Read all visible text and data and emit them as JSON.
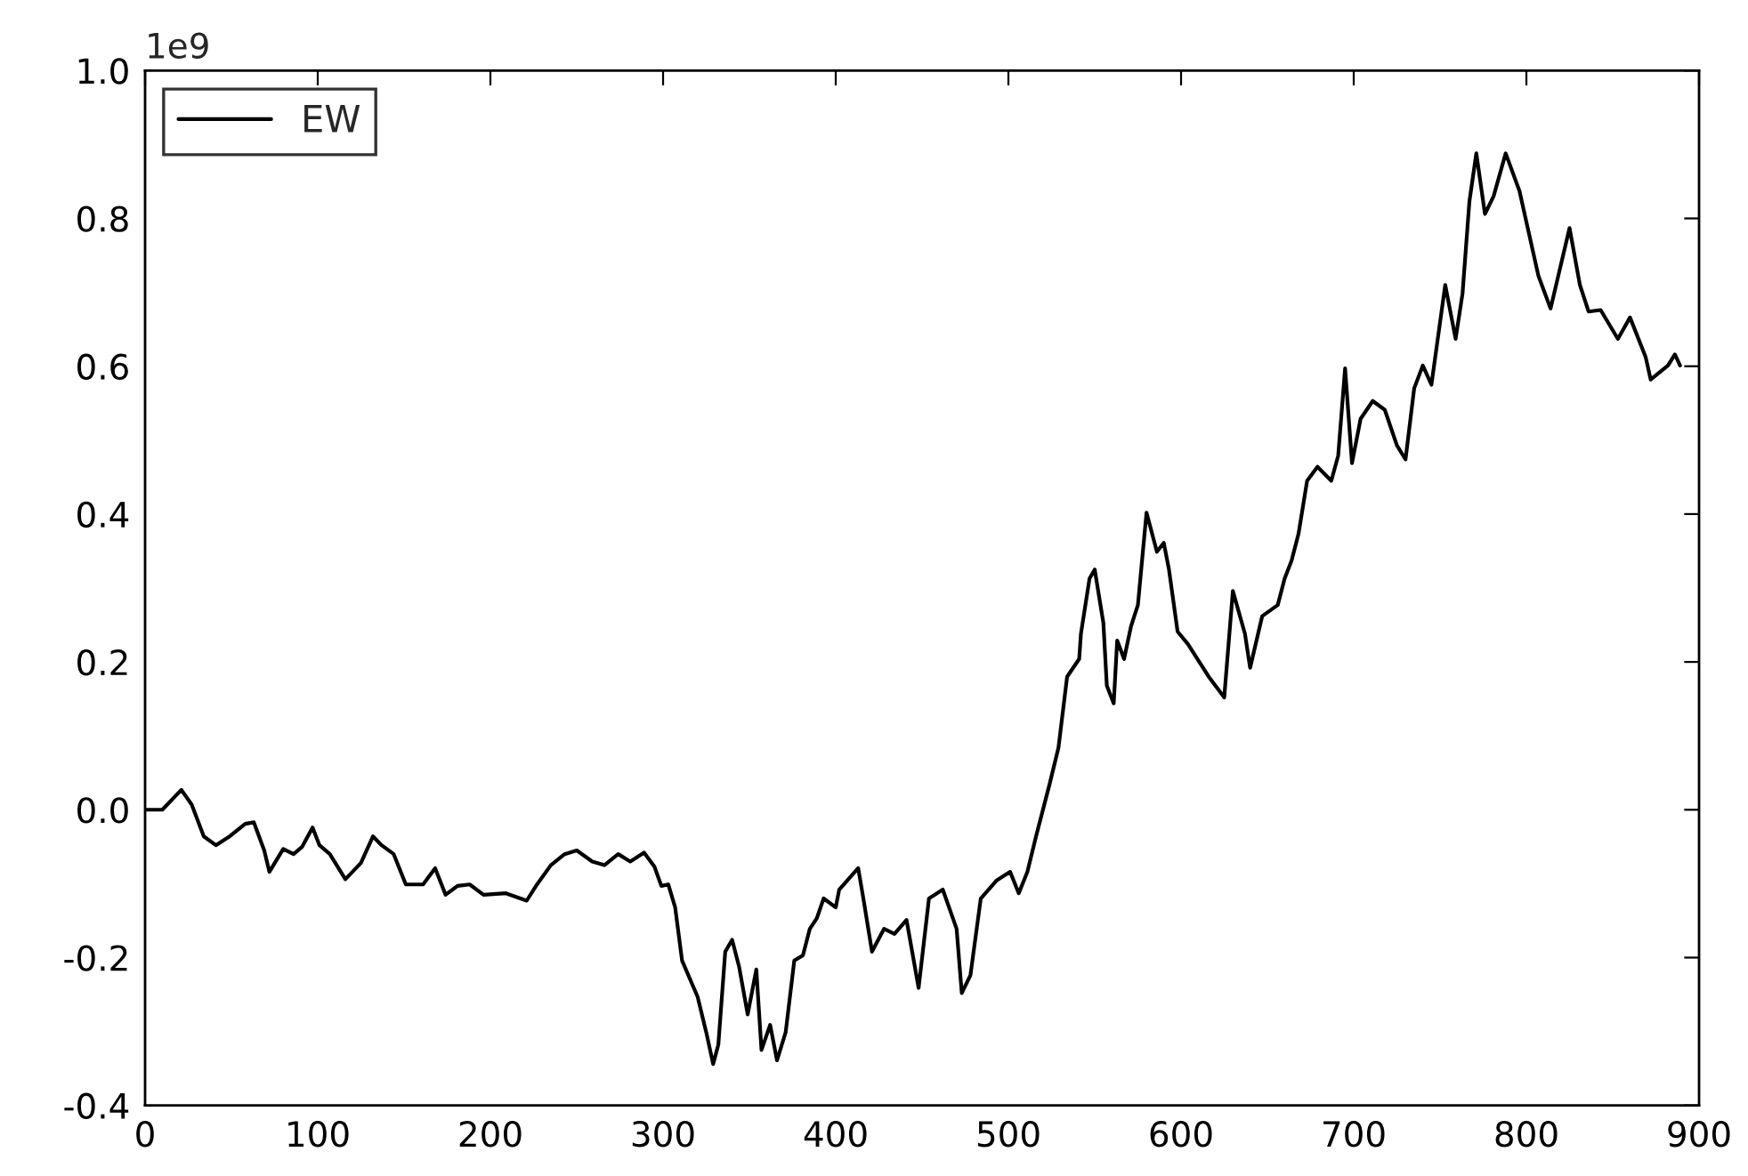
{
  "chart_data": {
    "type": "line",
    "x": [
      0,
      10,
      21,
      27,
      34,
      41,
      49,
      58,
      63,
      69,
      72,
      80,
      86,
      91,
      97,
      101,
      107,
      116,
      125,
      132,
      137,
      144,
      151,
      161,
      168,
      174,
      181,
      188,
      196,
      209,
      221,
      227,
      235,
      243,
      250,
      259,
      266,
      274,
      281,
      289,
      295,
      299,
      303,
      307,
      311,
      320,
      325,
      329,
      332,
      336,
      340,
      344,
      349,
      354,
      357,
      362,
      366,
      371,
      376,
      381,
      385,
      389,
      393,
      400,
      402,
      413,
      416,
      421,
      428,
      434,
      441,
      448,
      454,
      462,
      470,
      473,
      478,
      484,
      493,
      501,
      506,
      511,
      516,
      524,
      529,
      534,
      541,
      542,
      547,
      550,
      552,
      555,
      557,
      561,
      563,
      567,
      571,
      575,
      580,
      586,
      590,
      593,
      598,
      604,
      616,
      625,
      630,
      637,
      640,
      647,
      656,
      660,
      664,
      668,
      673,
      679,
      687,
      691,
      695,
      699,
      704,
      711,
      718,
      725,
      730,
      735,
      740,
      745,
      753,
      759,
      763,
      767,
      771,
      776,
      781,
      788,
      796,
      807,
      814,
      825,
      831,
      836,
      843,
      853,
      860,
      869,
      872,
      882,
      886,
      889
    ],
    "series": [
      {
        "name": "EW",
        "color": "#000000",
        "values": [
          0.0,
          0.0,
          0.027,
          0.007,
          -0.036,
          -0.048,
          -0.036,
          -0.019,
          -0.017,
          -0.055,
          -0.084,
          -0.053,
          -0.06,
          -0.05,
          -0.024,
          -0.048,
          -0.06,
          -0.094,
          -0.072,
          -0.036,
          -0.048,
          -0.06,
          -0.101,
          -0.101,
          -0.079,
          -0.115,
          -0.103,
          -0.101,
          -0.115,
          -0.113,
          -0.123,
          -0.101,
          -0.075,
          -0.06,
          -0.055,
          -0.07,
          -0.075,
          -0.06,
          -0.07,
          -0.058,
          -0.077,
          -0.103,
          -0.101,
          -0.132,
          -0.204,
          -0.253,
          -0.301,
          -0.344,
          -0.318,
          -0.192,
          -0.176,
          -0.212,
          -0.277,
          -0.216,
          -0.325,
          -0.291,
          -0.339,
          -0.301,
          -0.204,
          -0.197,
          -0.161,
          -0.147,
          -0.12,
          -0.132,
          -0.108,
          -0.079,
          -0.12,
          -0.192,
          -0.161,
          -0.168,
          -0.149,
          -0.241,
          -0.12,
          -0.108,
          -0.161,
          -0.248,
          -0.224,
          -0.12,
          -0.096,
          -0.084,
          -0.113,
          -0.084,
          -0.036,
          0.036,
          0.084,
          0.18,
          0.204,
          0.238,
          0.313,
          0.325,
          0.296,
          0.253,
          0.168,
          0.144,
          0.229,
          0.204,
          0.248,
          0.277,
          0.402,
          0.349,
          0.361,
          0.325,
          0.241,
          0.224,
          0.18,
          0.152,
          0.296,
          0.238,
          0.192,
          0.262,
          0.277,
          0.313,
          0.337,
          0.373,
          0.445,
          0.464,
          0.445,
          0.479,
          0.597,
          0.469,
          0.529,
          0.553,
          0.541,
          0.493,
          0.474,
          0.57,
          0.601,
          0.575,
          0.71,
          0.637,
          0.698,
          0.823,
          0.888,
          0.806,
          0.83,
          0.888,
          0.837,
          0.722,
          0.678,
          0.787,
          0.71,
          0.674,
          0.676,
          0.637,
          0.666,
          0.613,
          0.582,
          0.601,
          0.616,
          0.601
        ]
      }
    ],
    "xlim": [
      0,
      900
    ],
    "xticks": [
      0,
      100,
      200,
      300,
      400,
      500,
      600,
      700,
      800,
      900
    ],
    "ylim": [
      -0.4,
      1.0
    ],
    "yticks": [
      -0.4,
      -0.2,
      {
        "value": 0,
        "label": "0.0"
      },
      0.2,
      0.4,
      0.6,
      0.8,
      {
        "value": 1,
        "label": "1.0"
      }
    ],
    "annotations": [
      "1e9"
    ],
    "legend": "top left",
    "marker": "none",
    "line_style": "solid",
    "grid": false
  }
}
